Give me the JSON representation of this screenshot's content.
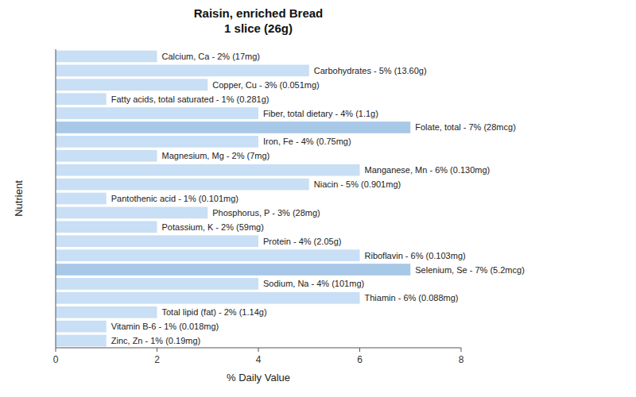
{
  "chart_data": {
    "type": "bar",
    "orientation": "horizontal",
    "title": "Raisin, enriched Bread\n1 slice (26g)",
    "x_label": "% Daily Value",
    "y_label": "Nutrient",
    "categories": [
      "Zinc, Zn - 1% (0.19mg)",
      "Vitamin B-6 - 1% (0.018mg)",
      "Total lipid (fat) - 2% (1.14g)",
      "Thiamin - 6% (0.088mg)",
      "Sodium, Na - 4% (101mg)",
      "Selenium, Se - 7% (5.2mcg)",
      "Riboflavin - 6% (0.103mg)",
      "Protein - 4% (2.05g)",
      "Potassium, K - 2% (59mg)",
      "Phosphorus, P - 3% (28mg)",
      "Pantothenic acid - 1% (0.101mg)",
      "Niacin - 5% (0.901mg)",
      "Manganese, Mn - 6% (0.130mg)",
      "Magnesium, Mg - 2% (7mg)",
      "Iron, Fe - 4% (0.75mg)",
      "Folate, total - 7% (28mcg)",
      "Fiber, total dietary - 4% (1.1g)",
      "Fatty acids, total saturated - 1% (0.281g)",
      "Copper, Cu - 3% (0.051mg)",
      "Carbohydrates - 5% (13.60g)",
      "Calcium, Ca - 2% (17mg)"
    ],
    "values": [
      1,
      1,
      2,
      6,
      4,
      7,
      6,
      4,
      2,
      3,
      1,
      5,
      6,
      2,
      4,
      7,
      4,
      1,
      3,
      5,
      2
    ],
    "colors": [
      "#c8dff5",
      "#c8dff5",
      "#c8dff5",
      "#c8dff5",
      "#c8dff5",
      "#a8c8e8",
      "#c8dff5",
      "#c8dff5",
      "#c8dff5",
      "#c8dff5",
      "#c8dff5",
      "#c8dff5",
      "#c8dff5",
      "#c8dff5",
      "#c8dff5",
      "#a8c8e8",
      "#c8dff5",
      "#c8dff5",
      "#c8dff5",
      "#c8dff5",
      "#c8dff5"
    ],
    "xlim": [
      0,
      8
    ],
    "xticks": [
      0,
      2,
      4,
      6,
      8
    ],
    "grid": false,
    "tick_labels": "x"
  }
}
